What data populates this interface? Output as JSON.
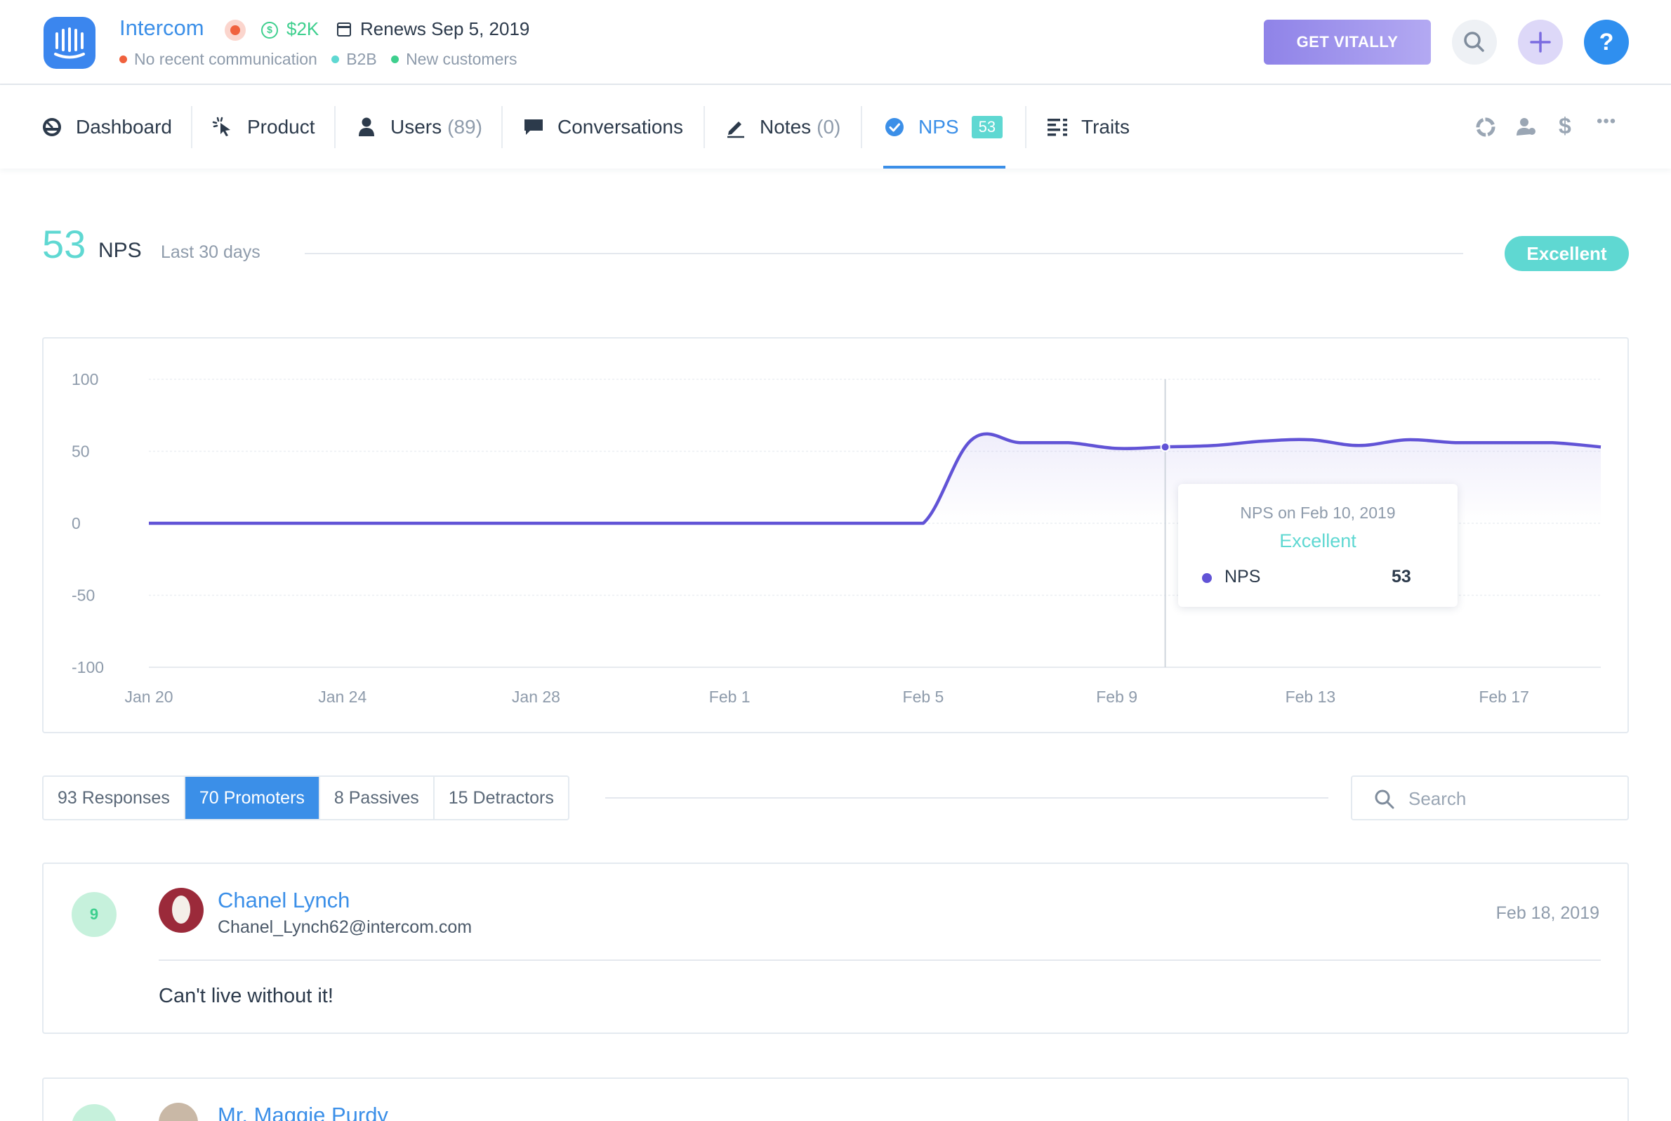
{
  "header": {
    "company": "Intercom",
    "mrr": "$2K",
    "renews": "Renews Sep 5, 2019",
    "tags": [
      {
        "label": "No recent communication",
        "color": "#f0613d"
      },
      {
        "label": "B2B",
        "color": "#5fd8d2"
      },
      {
        "label": "New customers",
        "color": "#3ecf8e"
      }
    ],
    "cta_label": "GET VITALLY",
    "help_label": "?"
  },
  "tabs": [
    {
      "label": "Dashboard",
      "icon": "gauge-icon"
    },
    {
      "label": "Product",
      "icon": "cursor-click-icon"
    },
    {
      "label": "Users",
      "count": "(89)",
      "icon": "user-icon"
    },
    {
      "label": "Conversations",
      "icon": "chat-bubble-icon"
    },
    {
      "label": "Notes",
      "count": "(0)",
      "icon": "pencil-icon"
    },
    {
      "label": "NPS",
      "badge": "53",
      "icon": "check-circle-icon",
      "active": true
    },
    {
      "label": "Traits",
      "icon": "list-icon"
    }
  ],
  "right_icons": [
    "pie-chart-icon",
    "user-group-icon",
    "dollar-icon",
    "more-icon"
  ],
  "right_icon_glyphs": {
    "dollar": "$",
    "more": "•••"
  },
  "summary": {
    "value": "53",
    "label": "NPS",
    "range": "Last 30 days",
    "status": "Excellent"
  },
  "chart_data": {
    "type": "area",
    "ylim": [
      -100,
      100
    ],
    "yticks": [
      "100",
      "50",
      "0",
      "-50",
      "-100"
    ],
    "xtick_labels": [
      "Jan 20",
      "Jan 24",
      "Jan 28",
      "Feb 1",
      "Feb 5",
      "Feb 9",
      "Feb 13",
      "Feb 17"
    ],
    "grid": true,
    "series_color": "#6153d6",
    "x": [
      "Jan 20",
      "Jan 21",
      "Jan 22",
      "Jan 23",
      "Jan 24",
      "Jan 25",
      "Jan 26",
      "Jan 27",
      "Jan 28",
      "Jan 29",
      "Jan 30",
      "Jan 31",
      "Feb 1",
      "Feb 2",
      "Feb 3",
      "Feb 4",
      "Feb 5",
      "Feb 6",
      "Feb 7",
      "Feb 8",
      "Feb 9",
      "Feb 10",
      "Feb 11",
      "Feb 12",
      "Feb 13",
      "Feb 14",
      "Feb 15",
      "Feb 16",
      "Feb 17",
      "Feb 18",
      "Feb 19"
    ],
    "values": [
      0,
      0,
      0,
      0,
      0,
      0,
      0,
      0,
      0,
      0,
      0,
      0,
      0,
      0,
      0,
      0,
      0,
      58,
      56,
      56,
      52,
      53,
      54,
      57,
      58,
      54,
      58,
      56,
      56,
      56,
      53
    ],
    "highlight_index": 21,
    "tooltip": {
      "title": "NPS on Feb 10, 2019",
      "status": "Excellent",
      "series": "NPS",
      "value": "53"
    }
  },
  "filters": [
    {
      "label": "93 Responses",
      "active": false
    },
    {
      "label": "70 Promoters",
      "active": true
    },
    {
      "label": "8 Passives",
      "active": false
    },
    {
      "label": "15 Detractors",
      "active": false
    }
  ],
  "search": {
    "placeholder": "Search",
    "value": ""
  },
  "responses": [
    {
      "score": "9",
      "name": "Chanel Lynch",
      "email": "Chanel_Lynch62@intercom.com",
      "date": "Feb 18, 2019",
      "comment": "Can't live without it!"
    },
    {
      "score": "",
      "name": "Mr. Maggie Purdy"
    }
  ]
}
